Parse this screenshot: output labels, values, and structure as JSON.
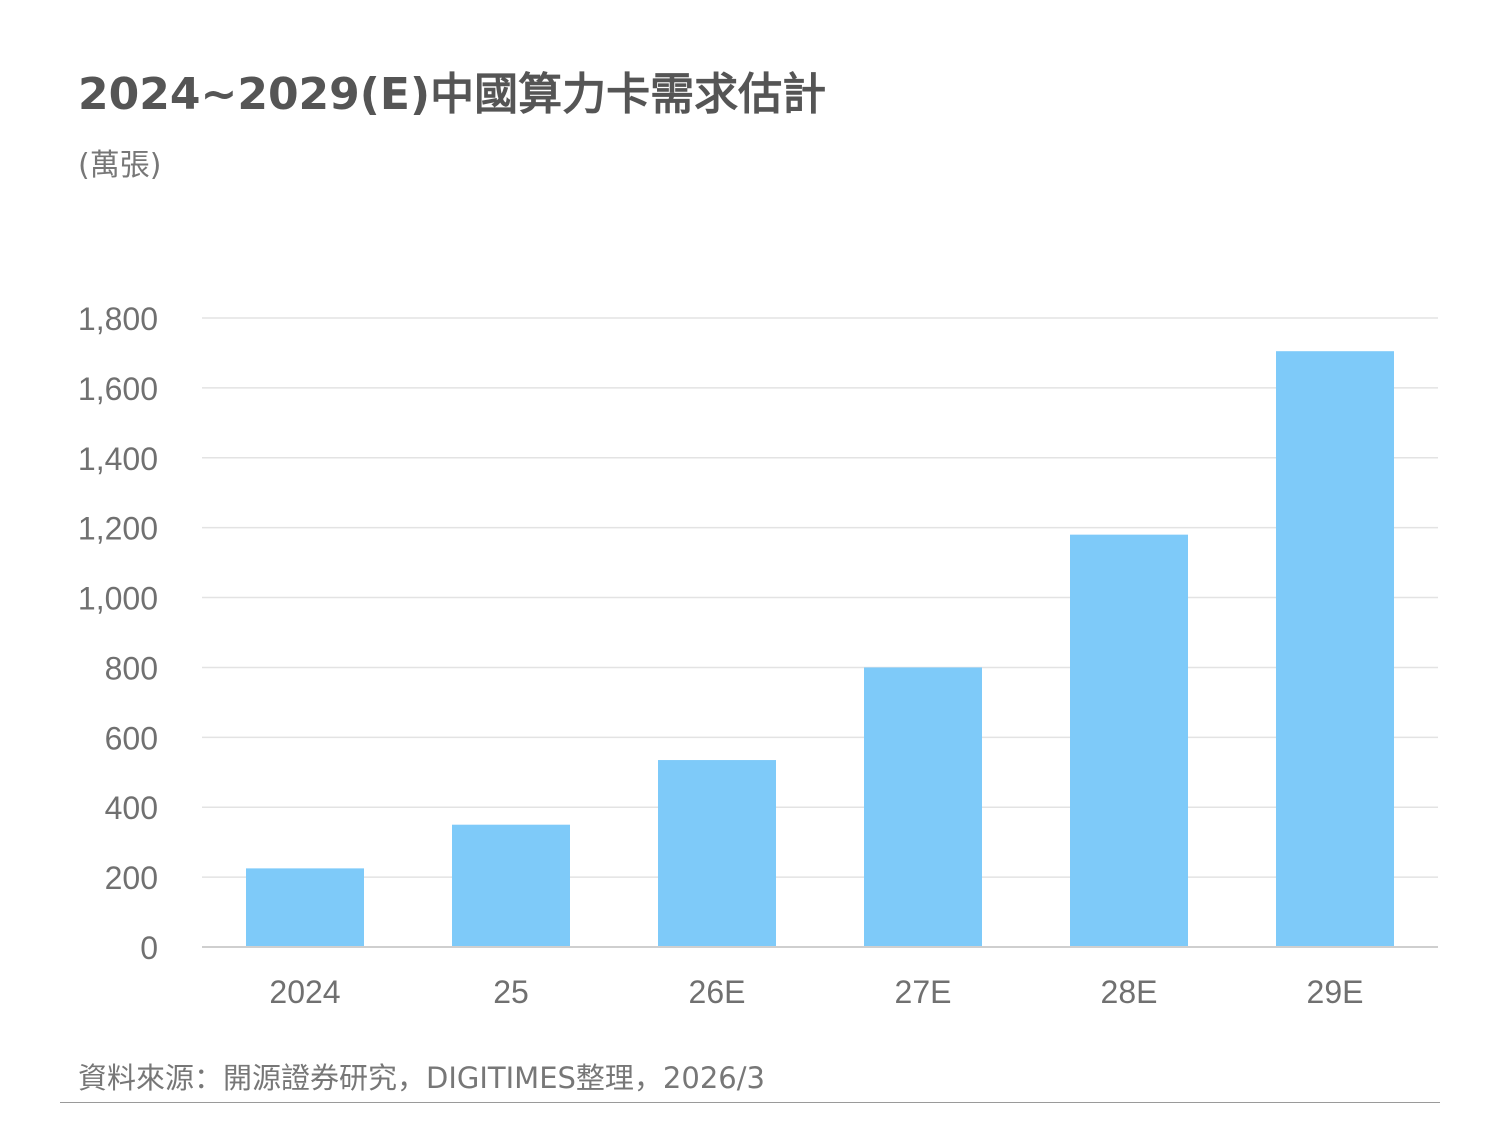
{
  "chart_data": {
    "type": "bar",
    "title": "2024~2029(E)中國算力卡需求估計",
    "subtitle": "(萬張)",
    "categories": [
      "2024",
      "25",
      "26E",
      "27E",
      "28E",
      "29E"
    ],
    "values": [
      225,
      350,
      535,
      800,
      1180,
      1705
    ],
    "ylim": [
      0,
      1800
    ],
    "yticks": [
      "0",
      "200",
      "400",
      "600",
      "800",
      "1,000",
      "1,200",
      "1,400",
      "1,600",
      "1,800"
    ],
    "ytick_values": [
      0,
      200,
      400,
      600,
      800,
      1000,
      1200,
      1400,
      1600,
      1800
    ],
    "grid": true,
    "legend": "none",
    "bar_color": "#7ecaf9",
    "grid_color": "#e3e3e3",
    "axis_color": "#cfcfcf"
  },
  "source": "資料來源：開源證券研究，DIGITIMES整理，2026/3"
}
